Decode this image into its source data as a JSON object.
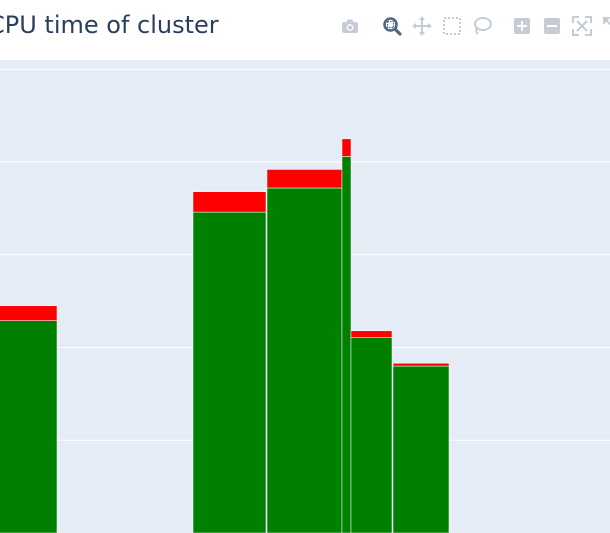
{
  "chart_data": {
    "type": "bar",
    "barmode": "stack",
    "title": "CPU time of cluster",
    "xlabel": "",
    "ylabel": "",
    "grid": true,
    "ylim": [
      0,
      510
    ],
    "bars": [
      {
        "x0": -30,
        "x1": 57,
        "values": [
          229,
          16
        ]
      },
      {
        "x0": 193,
        "x1": 266,
        "values": [
          346,
          22
        ]
      },
      {
        "x0": 267,
        "x1": 342,
        "values": [
          372,
          20
        ]
      },
      {
        "x0": 342,
        "x1": 351,
        "values": [
          406,
          19
        ]
      },
      {
        "x0": 351,
        "x1": 392,
        "values": [
          211,
          7
        ]
      },
      {
        "x0": 393,
        "x1": 449,
        "values": [
          180,
          3
        ]
      }
    ],
    "series": [
      {
        "name": "",
        "color": "#008000"
      },
      {
        "name": "",
        "color": "#ff0000"
      }
    ],
    "colors": {
      "plot_background": "#e5ecf6",
      "grid": "#ffffff",
      "title": "#2a3f5f",
      "modebar_icon": "#c5ccd6",
      "modebar_active": "#506784"
    }
  },
  "modebar": [
    {
      "name": "camera-icon",
      "active": false
    },
    {
      "name": "zoom-icon",
      "active": true
    },
    {
      "name": "pan-icon",
      "active": false
    },
    {
      "name": "box-select-icon",
      "active": false
    },
    {
      "name": "lasso-icon",
      "active": false
    },
    {
      "name": "zoom-in-icon",
      "active": false
    },
    {
      "name": "zoom-out-icon",
      "active": false
    },
    {
      "name": "autoscale-icon",
      "active": false
    },
    {
      "name": "reset-axes-icon",
      "active": false
    }
  ]
}
